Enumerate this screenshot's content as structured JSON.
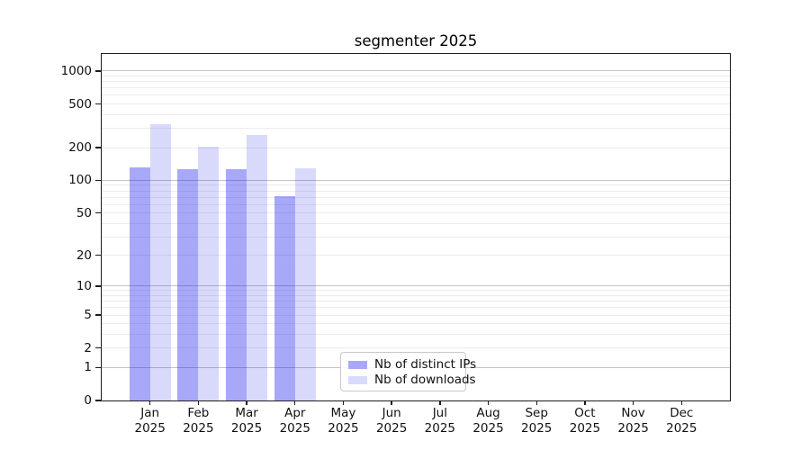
{
  "chart_data": {
    "type": "bar",
    "title": "segmenter 2025",
    "x_categories": [
      "Jan 2025",
      "Feb 2025",
      "Mar 2025",
      "Apr 2025",
      "May 2025",
      "Jun 2025",
      "Jul 2025",
      "Aug 2025",
      "Sep 2025",
      "Oct 2025",
      "Nov 2025",
      "Dec 2025"
    ],
    "x_tick_months": [
      "Jan",
      "Feb",
      "Mar",
      "Apr",
      "May",
      "Jun",
      "Jul",
      "Aug",
      "Sep",
      "Oct",
      "Nov",
      "Dec"
    ],
    "x_tick_year": "2025",
    "xlabel": "",
    "ylabel": "",
    "y_scale": "log1p",
    "y_ticks": [
      0,
      1,
      2,
      5,
      10,
      20,
      50,
      100,
      200,
      500,
      1000
    ],
    "ylim": [
      0,
      1430
    ],
    "grid": true,
    "legend_position": "lower-center",
    "series": [
      {
        "name": "Nb of distinct IPs",
        "color": "#a9a9f8",
        "fill": "rgba(15,15,235,0.36)",
        "values": [
          132,
          127,
          127,
          72,
          0,
          0,
          0,
          0,
          0,
          0,
          0,
          0
        ]
      },
      {
        "name": "Nb of downloads",
        "color": "#dadafc",
        "fill": "rgba(15,15,235,0.155)",
        "values": [
          330,
          204,
          261,
          130,
          0,
          0,
          0,
          0,
          0,
          0,
          0,
          0
        ]
      }
    ],
    "colors": {
      "grid_major": "#c4c4c4",
      "grid_minor": "#ececec",
      "spine": "#1c1c1c",
      "text": "#111111",
      "background": "#ffffff"
    }
  }
}
